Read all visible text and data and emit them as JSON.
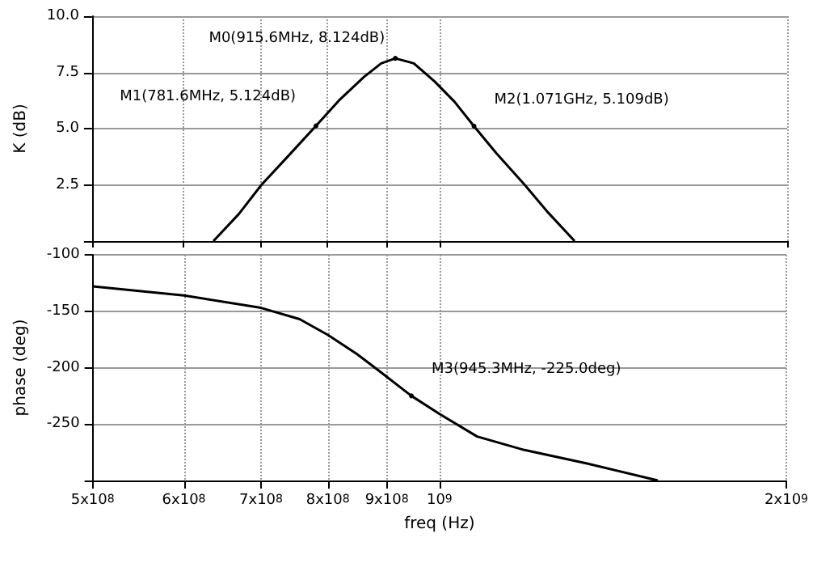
{
  "chart_data": [
    {
      "type": "line",
      "ylabel": "K (dB)",
      "log": "x",
      "grid": true,
      "tick_labels": "y",
      "marker": "none",
      "xlim": [
        500000000,
        2000000000
      ],
      "ylim": [
        0,
        10
      ],
      "xticks": [
        500000000,
        600000000,
        700000000,
        800000000,
        900000000,
        1000000000,
        2000000000
      ],
      "yticks": [
        {
          "value": 0,
          "label": null
        },
        {
          "value": 2.5,
          "label": "2.5"
        },
        {
          "value": 5,
          "label": "5.0"
        },
        {
          "value": 7.5,
          "label": "7.5"
        },
        {
          "value": 10,
          "label": "10.0"
        }
      ],
      "x": [
        637000000,
        670000000,
        701000000,
        740000000,
        781600000,
        820000000,
        860000000,
        890000000,
        915600000,
        950000000,
        990000000,
        1030000000,
        1071000000,
        1120000000,
        1185000000,
        1240000000,
        1309000000
      ],
      "series": [
        {
          "color": "#000000",
          "values": [
            0,
            1.2,
            2.5,
            3.8,
            5.124,
            6.3,
            7.3,
            7.9,
            8.124,
            7.9,
            7.1,
            6.2,
            5.109,
            3.9,
            2.5,
            1.3,
            0
          ]
        }
      ],
      "annotations": [
        {
          "text": "M0(915.6MHz, 8.124dB)",
          "x": 915600000,
          "y": 8.124
        },
        {
          "text": "M1(781.6MHz, 5.124dB)",
          "x": 781600000,
          "y": 5.124
        },
        {
          "text": "M2(1.071GHz, 5.109dB)",
          "x": 1071000000,
          "y": 5.109
        }
      ]
    },
    {
      "type": "line",
      "xlabel": "freq (Hz)",
      "ylabel": "phase (deg)",
      "log": "x",
      "grid": true,
      "marker": "none",
      "xlim": [
        500000000,
        2000000000
      ],
      "ylim": [
        -300,
        -100
      ],
      "xticks": [
        {
          "value": 500000000,
          "label": "5x10$^{8}$"
        },
        {
          "value": 600000000,
          "label": "6x10$^{8}$"
        },
        {
          "value": 700000000,
          "label": "7x10$^{8}$"
        },
        {
          "value": 800000000,
          "label": "8x10$^{8}$"
        },
        {
          "value": 900000000,
          "label": "9x10$^{8}$"
        },
        {
          "value": 1000000000,
          "label": "10$^{9}$"
        },
        {
          "value": 2000000000,
          "label": "2x10$^{9}$"
        }
      ],
      "yticks": [
        {
          "value": -300,
          "label": null
        },
        -250,
        -200,
        -150,
        -100
      ],
      "x": [
        500000000,
        600000000,
        700000000,
        756000000,
        800000000,
        848000000,
        884000000,
        945300000,
        1000000000,
        1078000000,
        1185000000,
        1343000000,
        1547000000
      ],
      "series": [
        {
          "color": "#000000",
          "values": [
            -128,
            -136,
            -147,
            -157,
            -171,
            -188,
            -202,
            -225,
            -241,
            -261,
            -273,
            -285,
            -300
          ]
        }
      ],
      "annotations": [
        {
          "text": "M3(945.3MHz, -225.0deg)",
          "x": 945300000,
          "y": -225
        }
      ]
    }
  ]
}
